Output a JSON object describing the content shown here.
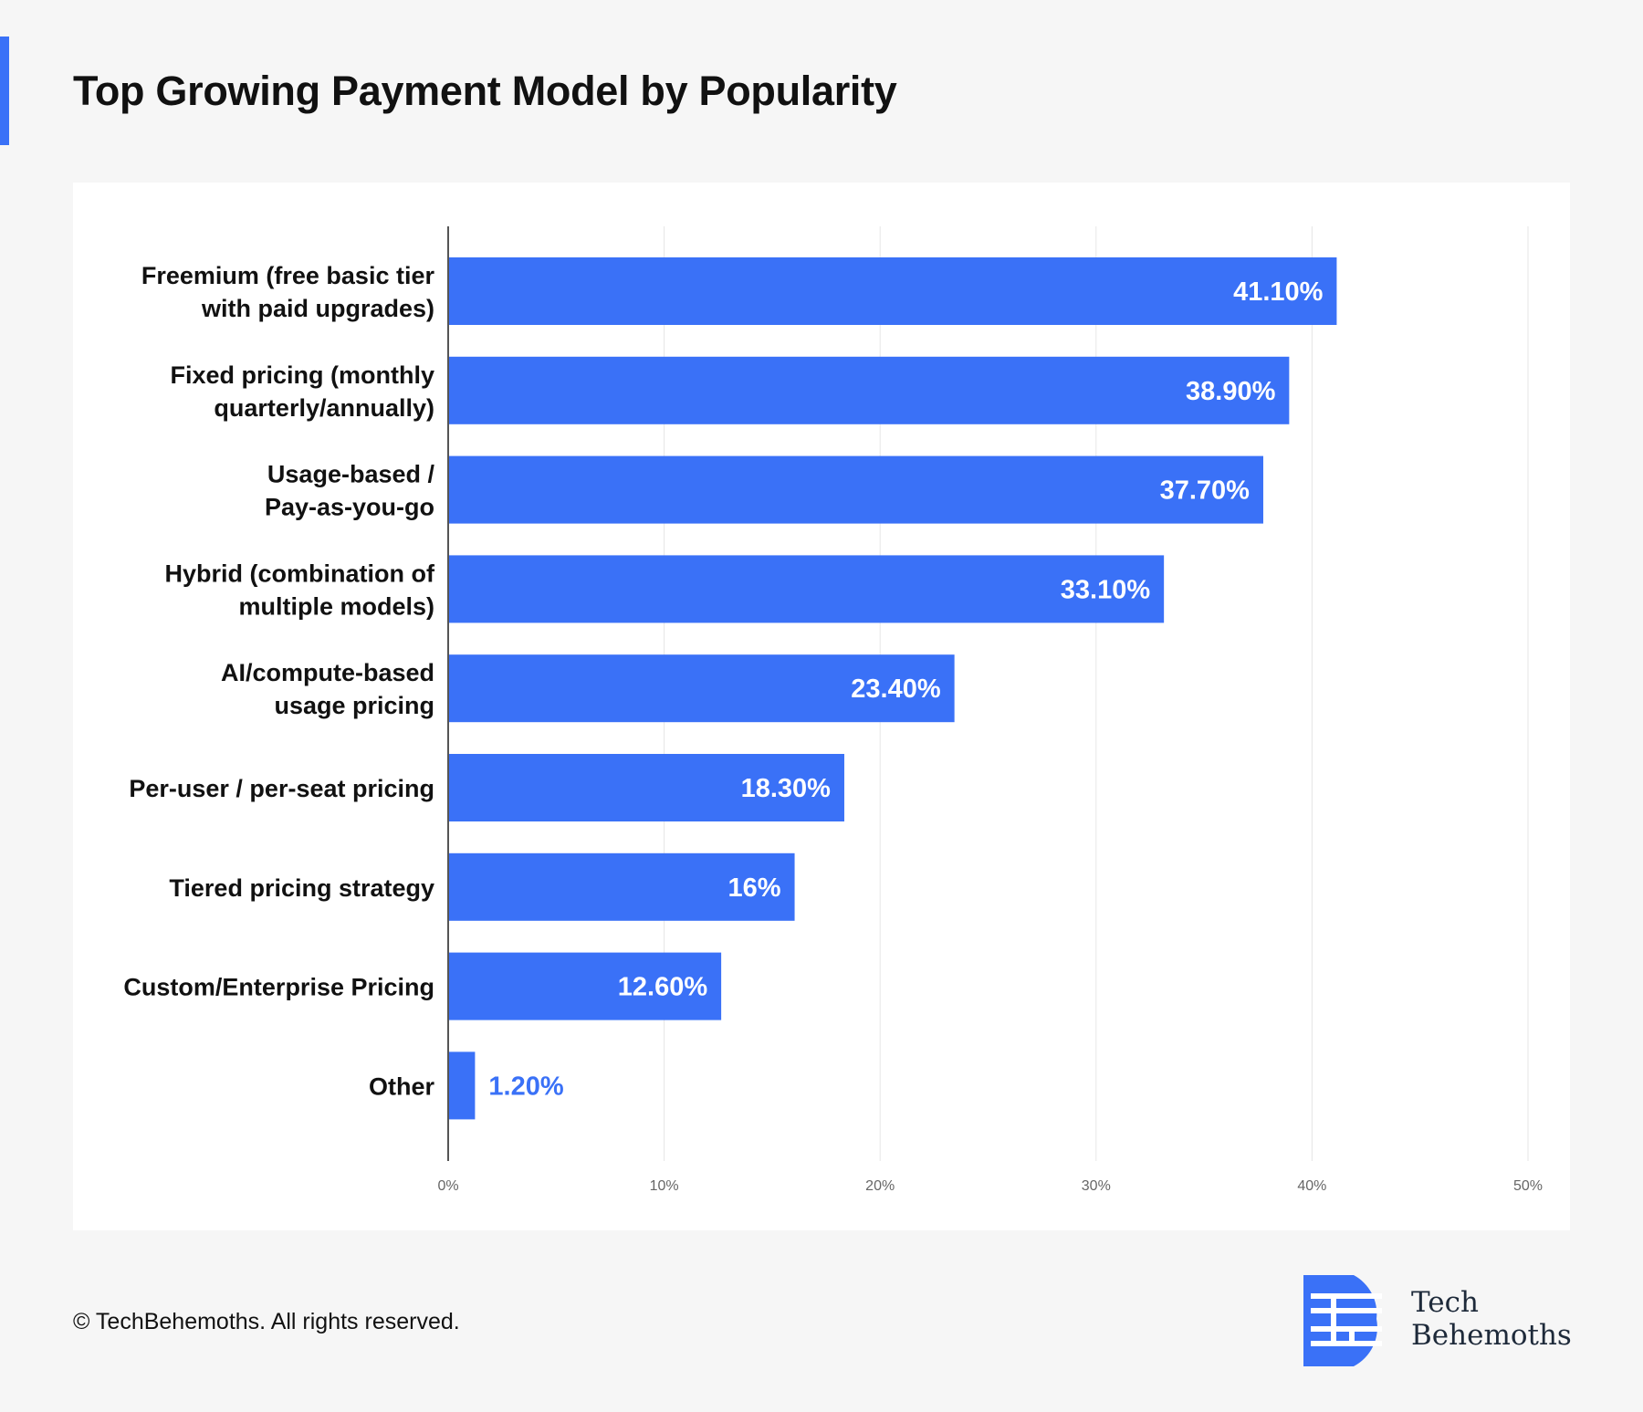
{
  "page": {
    "title": "Top Growing Payment Model by Popularity",
    "footer": "© TechBehemoths. All rights reserved.",
    "brand_name_line1": "Tech",
    "brand_name_line2": "Behemoths"
  },
  "colors": {
    "accent": "#3a71f7",
    "bar": "#3a71f7",
    "label_inside": "#ffffff",
    "label_outside": "#3a71f7",
    "grid": "#e6e6e6",
    "axis": "#555555",
    "brand_text": "#1e2a3a"
  },
  "chart_data": {
    "type": "bar",
    "orientation": "horizontal",
    "title": "",
    "xlabel": "",
    "ylabel": "",
    "xlim": [
      0,
      50
    ],
    "grid": true,
    "legend": "none",
    "x_ticks": [
      "0%",
      "10%",
      "20%",
      "30%",
      "40%",
      "50%"
    ],
    "categories": [
      [
        "Freemium (free basic tier",
        "with paid upgrades)"
      ],
      [
        "Fixed pricing (monthly",
        "quarterly/annually)"
      ],
      [
        "Usage-based /",
        "Pay-as-you-go"
      ],
      [
        "Hybrid (combination of",
        "multiple models)"
      ],
      [
        "AI/compute-based",
        "usage pricing"
      ],
      [
        "Per-user / per-seat pricing"
      ],
      [
        "Tiered pricing strategy"
      ],
      [
        "Custom/Enterprise Pricing"
      ],
      [
        "Other"
      ]
    ],
    "values": [
      41.1,
      38.9,
      37.7,
      33.1,
      23.4,
      18.3,
      16,
      12.6,
      1.2
    ],
    "value_labels": [
      "41.10%",
      "38.90%",
      "37.70%",
      "33.10%",
      "23.40%",
      "18.30%",
      "16%",
      "12.60%",
      "1.20%"
    ]
  }
}
